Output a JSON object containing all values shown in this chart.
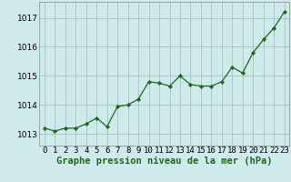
{
  "x": [
    0,
    1,
    2,
    3,
    4,
    5,
    6,
    7,
    8,
    9,
    10,
    11,
    12,
    13,
    14,
    15,
    16,
    17,
    18,
    19,
    20,
    21,
    22,
    23
  ],
  "y": [
    1013.2,
    1013.1,
    1013.2,
    1013.2,
    1013.35,
    1013.55,
    1013.25,
    1013.95,
    1014.0,
    1014.2,
    1014.8,
    1014.75,
    1014.65,
    1015.0,
    1014.7,
    1014.65,
    1014.65,
    1014.8,
    1015.3,
    1015.1,
    1015.8,
    1016.25,
    1016.65,
    1017.2
  ],
  "line_color": "#1a6b1a",
  "marker": "D",
  "marker_size": 2.2,
  "linewidth": 0.9,
  "bg_color": "#ceeaea",
  "grid_color": "#a8c8c8",
  "xlabel": "Graphe pression niveau de la mer (hPa)",
  "xlabel_fontsize": 7.5,
  "tick_fontsize": 6.5,
  "ylim": [
    1012.6,
    1017.55
  ],
  "yticks": [
    1013,
    1014,
    1015,
    1016,
    1017
  ],
  "xticks": [
    0,
    1,
    2,
    3,
    4,
    5,
    6,
    7,
    8,
    9,
    10,
    11,
    12,
    13,
    14,
    15,
    16,
    17,
    18,
    19,
    20,
    21,
    22,
    23
  ]
}
